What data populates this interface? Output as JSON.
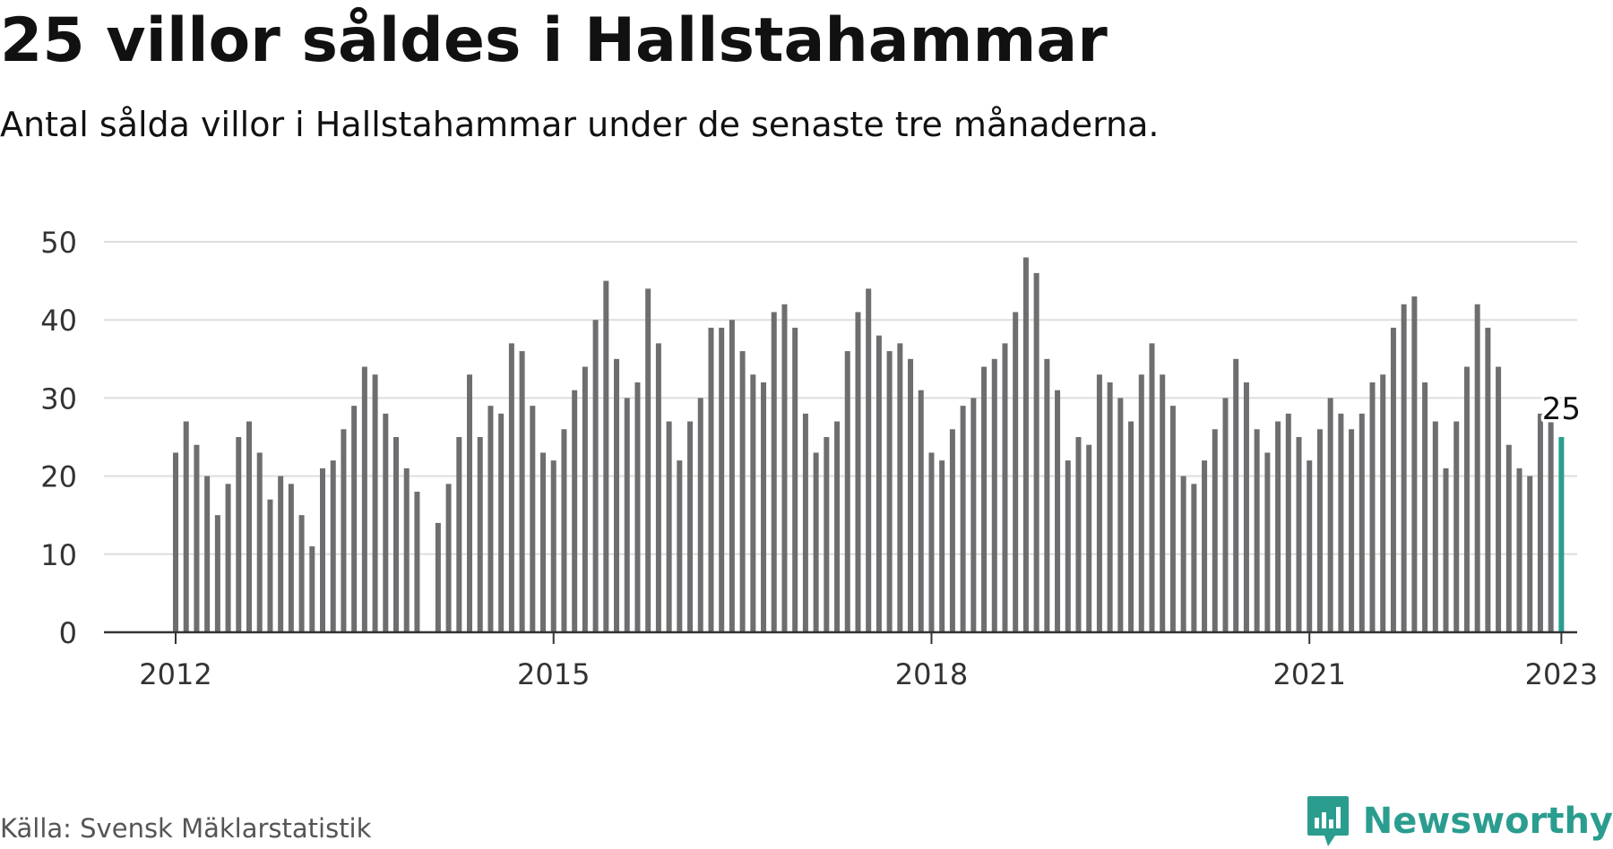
{
  "header": {
    "title": "25 villor såldes i Hallstahammar",
    "subtitle": "Antal sålda villor i Hallstahammar under de senaste tre månaderna."
  },
  "footer": {
    "source": "Källa: Svensk Mäklarstatistik",
    "brand": "Newsworthy"
  },
  "colors": {
    "bar": "#6e6e70",
    "highlight": "#2a9d8f",
    "grid": "#dddddd",
    "axis": "#333333",
    "brand": "#2a9d8f"
  },
  "icons": {
    "brand_logo": "newsworthy-logo-icon"
  },
  "chart_data": {
    "type": "bar",
    "title": "25 villor såldes i Hallstahammar",
    "subtitle": "Antal sålda villor i Hallstahammar under de senaste tre månaderna.",
    "xlabel": "",
    "ylabel": "",
    "ylim": [
      0,
      50
    ],
    "yticks": [
      0,
      10,
      20,
      30,
      40,
      50
    ],
    "grid": true,
    "legend": "none",
    "frequency": "monthly",
    "xticks": [
      {
        "date": "2012-01",
        "label": "2012"
      },
      {
        "date": "2015-01",
        "label": "2015"
      },
      {
        "date": "2018-01",
        "label": "2018"
      },
      {
        "date": "2021-01",
        "label": "2021"
      },
      {
        "date": "2023-01",
        "label": "2023"
      }
    ],
    "highlight": {
      "date": "2023-01",
      "value": 25,
      "label": "25"
    },
    "series": [
      {
        "x": [
          "2012-01",
          "2012-02",
          "2012-03",
          "2012-04",
          "2012-05",
          "2012-06",
          "2012-07",
          "2012-08",
          "2012-09",
          "2012-10",
          "2012-11",
          "2012-12",
          "2013-01",
          "2013-02",
          "2013-03",
          "2013-04",
          "2013-05",
          "2013-06",
          "2013-07",
          "2013-08",
          "2013-09",
          "2013-10",
          "2013-11",
          "2013-12",
          "2014-01",
          "2014-02",
          "2014-03",
          "2014-04",
          "2014-05",
          "2014-06",
          "2014-07",
          "2014-08",
          "2014-09",
          "2014-10",
          "2014-11",
          "2014-12",
          "2015-01",
          "2015-02",
          "2015-03",
          "2015-04",
          "2015-05",
          "2015-06",
          "2015-07",
          "2015-08",
          "2015-09",
          "2015-10",
          "2015-11",
          "2015-12",
          "2016-01",
          "2016-02",
          "2016-03",
          "2016-04",
          "2016-05",
          "2016-06",
          "2016-07",
          "2016-08",
          "2016-09",
          "2016-10",
          "2016-11",
          "2016-12",
          "2017-01",
          "2017-02",
          "2017-03",
          "2017-04",
          "2017-05",
          "2017-06",
          "2017-07",
          "2017-08",
          "2017-09",
          "2017-10",
          "2017-11",
          "2017-12",
          "2018-01",
          "2018-02",
          "2018-03",
          "2018-04",
          "2018-05",
          "2018-06",
          "2018-07",
          "2018-08",
          "2018-09",
          "2018-10",
          "2018-11",
          "2018-12",
          "2019-01",
          "2019-02",
          "2019-03",
          "2019-04",
          "2019-05",
          "2019-06",
          "2019-07",
          "2019-08",
          "2019-09",
          "2019-10",
          "2019-11",
          "2019-12",
          "2020-01",
          "2020-02",
          "2020-03",
          "2020-04",
          "2020-05",
          "2020-06",
          "2020-07",
          "2020-08",
          "2020-09",
          "2020-10",
          "2020-11",
          "2020-12",
          "2021-01",
          "2021-02",
          "2021-03",
          "2021-04",
          "2021-05",
          "2021-06",
          "2021-07",
          "2021-08",
          "2021-09",
          "2021-10",
          "2021-11",
          "2021-12",
          "2022-01",
          "2022-02",
          "2022-03",
          "2022-04",
          "2022-05",
          "2022-06",
          "2022-07",
          "2022-08",
          "2022-09",
          "2022-10",
          "2022-11",
          "2022-12",
          "2023-01"
        ],
        "values": [
          23,
          27,
          24,
          20,
          15,
          19,
          25,
          27,
          23,
          17,
          20,
          19,
          15,
          11,
          21,
          22,
          26,
          29,
          34,
          33,
          28,
          25,
          21,
          18,
          null,
          14,
          19,
          25,
          33,
          25,
          29,
          28,
          37,
          36,
          29,
          23,
          22,
          26,
          31,
          34,
          40,
          45,
          35,
          30,
          32,
          44,
          37,
          27,
          22,
          27,
          30,
          39,
          39,
          40,
          36,
          33,
          32,
          41,
          42,
          39,
          28,
          23,
          25,
          27,
          36,
          41,
          44,
          38,
          36,
          37,
          35,
          31,
          23,
          22,
          26,
          29,
          30,
          34,
          35,
          37,
          41,
          48,
          46,
          35,
          31,
          22,
          25,
          24,
          33,
          32,
          30,
          27,
          33,
          37,
          33,
          29,
          20,
          19,
          22,
          26,
          30,
          35,
          32,
          26,
          23,
          27,
          28,
          25,
          22,
          26,
          30,
          28,
          26,
          28,
          32,
          33,
          39,
          42,
          43,
          32,
          27,
          21,
          27,
          34,
          42,
          39,
          34,
          24,
          21,
          20,
          28,
          27,
          25
        ]
      }
    ]
  }
}
